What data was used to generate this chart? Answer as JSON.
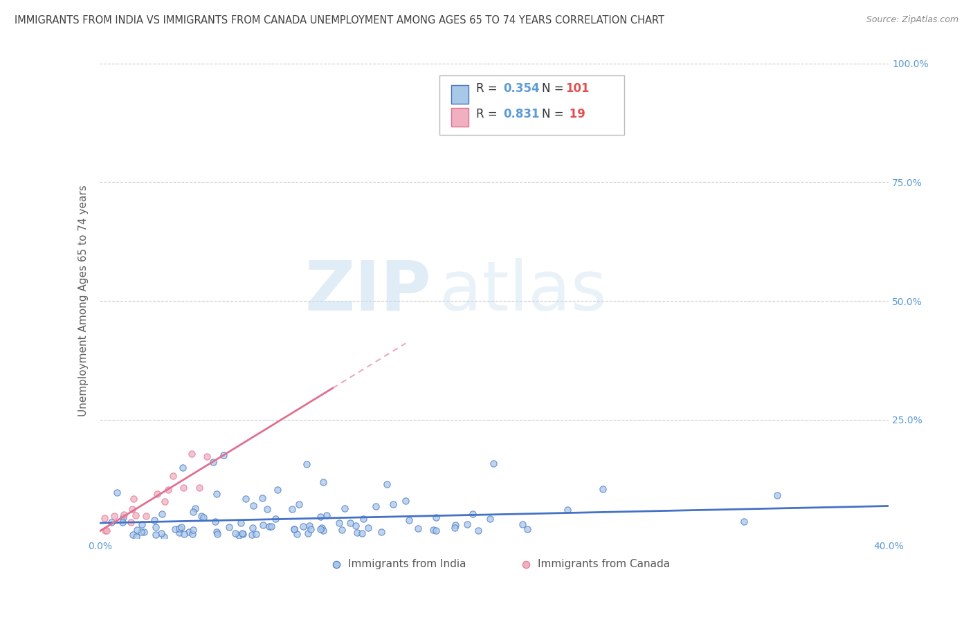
{
  "title": "IMMIGRANTS FROM INDIA VS IMMIGRANTS FROM CANADA UNEMPLOYMENT AMONG AGES 65 TO 74 YEARS CORRELATION CHART",
  "source": "Source: ZipAtlas.com",
  "ylabel": "Unemployment Among Ages 65 to 74 years",
  "xlim": [
    0.0,
    0.4
  ],
  "ylim": [
    0.0,
    1.0
  ],
  "xticks": [
    0.0,
    0.1,
    0.2,
    0.3,
    0.4
  ],
  "xtick_labels": [
    "0.0%",
    "",
    "",
    "",
    "40.0%"
  ],
  "yticks": [
    0.0,
    0.25,
    0.5,
    0.75,
    1.0
  ],
  "ytick_labels_left": [
    "",
    "",
    "",
    "",
    ""
  ],
  "ytick_labels_right": [
    "",
    "25.0%",
    "50.0%",
    "75.0%",
    "100.0%"
  ],
  "india_color": "#a8c8e8",
  "canada_color": "#f0b0c0",
  "india_R": 0.354,
  "india_N": 101,
  "canada_R": 0.831,
  "canada_N": 19,
  "legend_india_label": "Immigrants from India",
  "legend_canada_label": "Immigrants from Canada",
  "watermark_zip": "ZIP",
  "watermark_atlas": "atlas",
  "background_color": "#ffffff",
  "grid_color": "#cccccc",
  "title_color": "#404040",
  "axis_label_color": "#606060",
  "tick_label_color": "#5b9bd5",
  "india_line_color": "#4472c4",
  "canada_line_color": "#e07090",
  "india_seed": 42,
  "canada_seed": 7,
  "legend_R_color": "#5b9bd5",
  "legend_N_color": "#e05050"
}
